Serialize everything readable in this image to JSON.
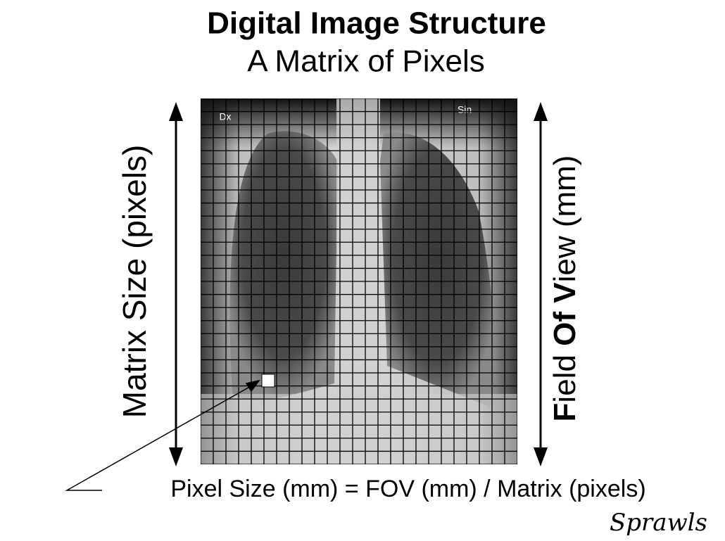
{
  "title": "Digital Image Structure",
  "subtitle": "A Matrix of Pixels",
  "left_label": "Matrix Size (pixels)",
  "right_label": [
    {
      "text": "F",
      "bold": true
    },
    {
      "text": "ield ",
      "bold": false
    },
    {
      "text": "Of",
      "bold": true
    },
    {
      "text": " ",
      "bold": false
    },
    {
      "text": "V",
      "bold": true
    },
    {
      "text": "iew (mm)",
      "bold": false
    }
  ],
  "image": {
    "left_marker": "Dx",
    "right_marker": "Sin"
  },
  "formula": "Pixel Size (mm) = FOV (mm) / Matrix (pixels)",
  "signature": "Sprawls"
}
